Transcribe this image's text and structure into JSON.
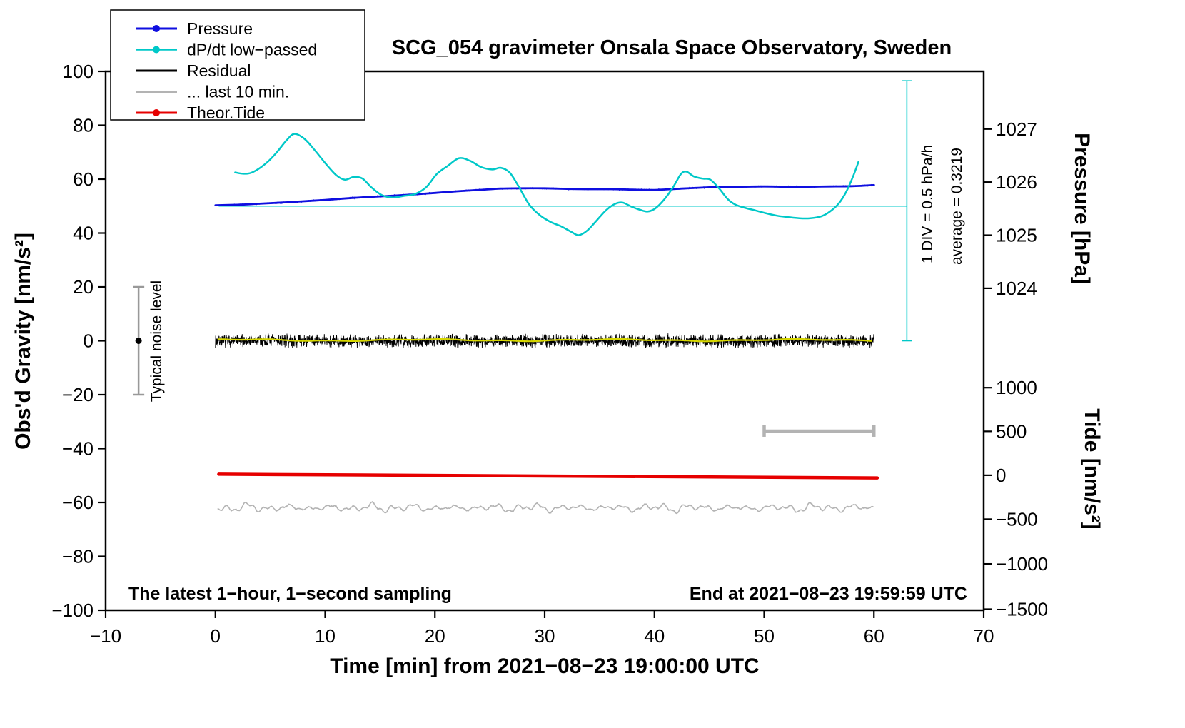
{
  "chart_data": {
    "type": "line",
    "title": "SCG_054 gravimeter Onsala Space Observatory, Sweden",
    "axes": {
      "x": {
        "label": "Time [min] from 2021−08−23 19:00:00 UTC",
        "min": -10,
        "max": 70,
        "ticks": [
          {
            "v": -10,
            "label": "−10"
          },
          {
            "v": 0,
            "label": "0"
          },
          {
            "v": 10,
            "label": "10"
          },
          {
            "v": 20,
            "label": "20"
          },
          {
            "v": 30,
            "label": "30"
          },
          {
            "v": 40,
            "label": "40"
          },
          {
            "v": 50,
            "label": "50"
          },
          {
            "v": 60,
            "label": "60"
          },
          {
            "v": 70,
            "label": "70"
          }
        ]
      },
      "y_left": {
        "label": "Obs'd Gravity [nm/s²]",
        "min": -100,
        "max": 100,
        "ticks": [
          {
            "v": -100,
            "label": "−100"
          },
          {
            "v": -80,
            "label": "−80"
          },
          {
            "v": -60,
            "label": "−60"
          },
          {
            "v": -40,
            "label": "−40"
          },
          {
            "v": -20,
            "label": "−20"
          },
          {
            "v": 0,
            "label": "0"
          },
          {
            "v": 20,
            "label": "20"
          },
          {
            "v": 40,
            "label": "40"
          },
          {
            "v": 60,
            "label": "60"
          },
          {
            "v": 80,
            "label": "80"
          },
          {
            "v": 100,
            "label": "100"
          }
        ]
      },
      "y_right_pressure": {
        "label": "Pressure [hPa]",
        "ticks": [
          {
            "g": 78.6,
            "label": "1027"
          },
          {
            "g": 58.9,
            "label": "1026"
          },
          {
            "g": 39.2,
            "label": "1025"
          },
          {
            "g": 19.5,
            "label": "1024"
          }
        ]
      },
      "y_right_tide": {
        "label": "Tide [nm/s²]",
        "ticks": [
          {
            "g": -17.4,
            "label": "1000"
          },
          {
            "g": -33.6,
            "label": "500"
          },
          {
            "g": -49.9,
            "label": "0"
          },
          {
            "g": -66.2,
            "label": "−500"
          },
          {
            "g": -82.8,
            "label": "−1000"
          },
          {
            "g": -99.6,
            "label": "−1500"
          }
        ]
      }
    },
    "legend": {
      "items": [
        {
          "label": "Pressure",
          "color": "#0f0fe0",
          "style": "line-dot",
          "width": 3
        },
        {
          "label": "dP/dt low−passed",
          "color": "#00c8c8",
          "style": "line-dot",
          "width": 2.5
        },
        {
          "label": "Residual",
          "color": "#000000",
          "style": "line",
          "width": 3
        },
        {
          "label": "... last 10 min.",
          "color": "#b3b3b3",
          "style": "line",
          "width": 3
        },
        {
          "label": "Theor.Tide",
          "color": "#e60000",
          "style": "line-dot",
          "width": 3
        }
      ]
    },
    "annotations": {
      "sampling_note": "The latest 1−hour, 1−second sampling",
      "end_time": "End at 2021−08−23 19:59:59 UTC",
      "noise_label": "Typical noise level",
      "div_scale": "1 DIV = 0.5 hPa/h",
      "average": "average = 0.3219"
    },
    "reference": {
      "dpdt_zero_line": {
        "y": 50,
        "x_from": 0.3,
        "x_to": 63,
        "color": "#00c8c8",
        "width": 1.4
      },
      "div_scale_bar": {
        "x": 63,
        "g_from": 0,
        "g_to": 96.5,
        "cap_half": 7,
        "color": "#00c8c8",
        "width": 1.6
      },
      "noise_errorbar": {
        "x": -7,
        "g_from": -20,
        "g_to": 20,
        "cap_half": 8,
        "dot_g": 0,
        "dot_r": 4.5,
        "color": "#999999",
        "dot_color": "#000000",
        "width": 2.5
      },
      "minute_scale_bar": {
        "y": -33.5,
        "x_from": 50,
        "x_to": 60,
        "cap_half": 8,
        "color": "#b3b3b3",
        "width": 4.5
      }
    },
    "series": [
      {
        "name": "Residual",
        "kind": "noise-band",
        "color": "#000000",
        "width": 0.9,
        "x_from": 0,
        "x_to": 60,
        "mean": 0,
        "amplitude": 2.8,
        "seed": 7
      },
      {
        "name": "Residual trend (yellow)",
        "kind": "wavy-flat",
        "color": "#d6d600",
        "width": 2.2,
        "x_from": 0.2,
        "x_to": 60,
        "mean": 0.25,
        "amplitude": 0.35
      },
      {
        "name": "... last 10 min.",
        "kind": "wiggle",
        "color": "#b3b3b3",
        "width": 1.6,
        "x_from": 0.2,
        "x_to": 60,
        "mean": -62,
        "amplitude": 1.5,
        "seed": 3
      },
      {
        "name": "Theor.Tide",
        "kind": "straight",
        "color": "#e60000",
        "width": 4.5,
        "points": [
          [
            0.3,
            -49.5
          ],
          [
            60.3,
            -50.9
          ]
        ]
      },
      {
        "name": "Pressure",
        "kind": "noisy-line",
        "color": "#0f0fe0",
        "width": 2.8,
        "noise": 0.35,
        "seed": 11,
        "points": [
          [
            0,
            50.3
          ],
          [
            2,
            50.5
          ],
          [
            4,
            50.9
          ],
          [
            6,
            51.3
          ],
          [
            8,
            51.8
          ],
          [
            10,
            52.3
          ],
          [
            12,
            52.9
          ],
          [
            14,
            53.4
          ],
          [
            16,
            53.8
          ],
          [
            18,
            54.3
          ],
          [
            20,
            54.9
          ],
          [
            22,
            55.5
          ],
          [
            24,
            56.0
          ],
          [
            26,
            56.5
          ],
          [
            28,
            56.6
          ],
          [
            30,
            56.6
          ],
          [
            32,
            56.4
          ],
          [
            34,
            56.3
          ],
          [
            36,
            56.3
          ],
          [
            38,
            56.1
          ],
          [
            40,
            56.0
          ],
          [
            42,
            56.4
          ],
          [
            44,
            56.8
          ],
          [
            46,
            57.1
          ],
          [
            48,
            57.2
          ],
          [
            50,
            57.3
          ],
          [
            52,
            57.2
          ],
          [
            54,
            57.2
          ],
          [
            56,
            57.3
          ],
          [
            58,
            57.4
          ],
          [
            60,
            57.8
          ]
        ]
      },
      {
        "name": "dP/dt low−passed",
        "kind": "smooth",
        "color": "#00c8c8",
        "width": 2.5,
        "points": [
          [
            1.8,
            62.5
          ],
          [
            2.6,
            62.0
          ],
          [
            3.4,
            62.6
          ],
          [
            4.5,
            65.5
          ],
          [
            5.5,
            69.5
          ],
          [
            6.5,
            74.5
          ],
          [
            7.2,
            76.8
          ],
          [
            8.1,
            75.0
          ],
          [
            9.0,
            71.0
          ],
          [
            10.0,
            66.0
          ],
          [
            11.0,
            61.5
          ],
          [
            11.8,
            59.8
          ],
          [
            12.6,
            60.8
          ],
          [
            13.4,
            60.2
          ],
          [
            14.2,
            57.0
          ],
          [
            15.2,
            54.0
          ],
          [
            16.2,
            53.2
          ],
          [
            17.2,
            53.8
          ],
          [
            18.2,
            54.5
          ],
          [
            19.2,
            57.0
          ],
          [
            20.2,
            62.0
          ],
          [
            21.2,
            65.0
          ],
          [
            22.2,
            67.8
          ],
          [
            23.2,
            66.8
          ],
          [
            24.2,
            64.5
          ],
          [
            25.2,
            63.6
          ],
          [
            26.0,
            64.2
          ],
          [
            26.8,
            62.5
          ],
          [
            27.6,
            57.5
          ],
          [
            28.6,
            50.5
          ],
          [
            29.6,
            46.5
          ],
          [
            30.6,
            44.0
          ],
          [
            31.5,
            42.5
          ],
          [
            32.4,
            40.5
          ],
          [
            33.1,
            39.2
          ],
          [
            33.9,
            41.0
          ],
          [
            34.7,
            44.5
          ],
          [
            35.6,
            48.5
          ],
          [
            36.4,
            50.8
          ],
          [
            37.1,
            51.3
          ],
          [
            37.9,
            49.8
          ],
          [
            38.7,
            48.6
          ],
          [
            39.4,
            48.0
          ],
          [
            40.1,
            49.2
          ],
          [
            40.9,
            52.5
          ],
          [
            41.7,
            57.0
          ],
          [
            42.4,
            61.8
          ],
          [
            42.9,
            62.8
          ],
          [
            43.6,
            61.0
          ],
          [
            44.4,
            60.2
          ],
          [
            45.1,
            59.8
          ],
          [
            45.9,
            56.5
          ],
          [
            46.7,
            52.5
          ],
          [
            47.4,
            50.5
          ],
          [
            48.2,
            49.4
          ],
          [
            49.2,
            48.4
          ],
          [
            50.2,
            47.3
          ],
          [
            51.2,
            46.4
          ],
          [
            52.2,
            45.9
          ],
          [
            53.2,
            45.5
          ],
          [
            54.2,
            45.5
          ],
          [
            55.2,
            46.2
          ],
          [
            56.0,
            48.0
          ],
          [
            56.8,
            51.0
          ],
          [
            57.5,
            55.5
          ],
          [
            58.1,
            61.0
          ],
          [
            58.6,
            66.5
          ]
        ]
      }
    ]
  }
}
